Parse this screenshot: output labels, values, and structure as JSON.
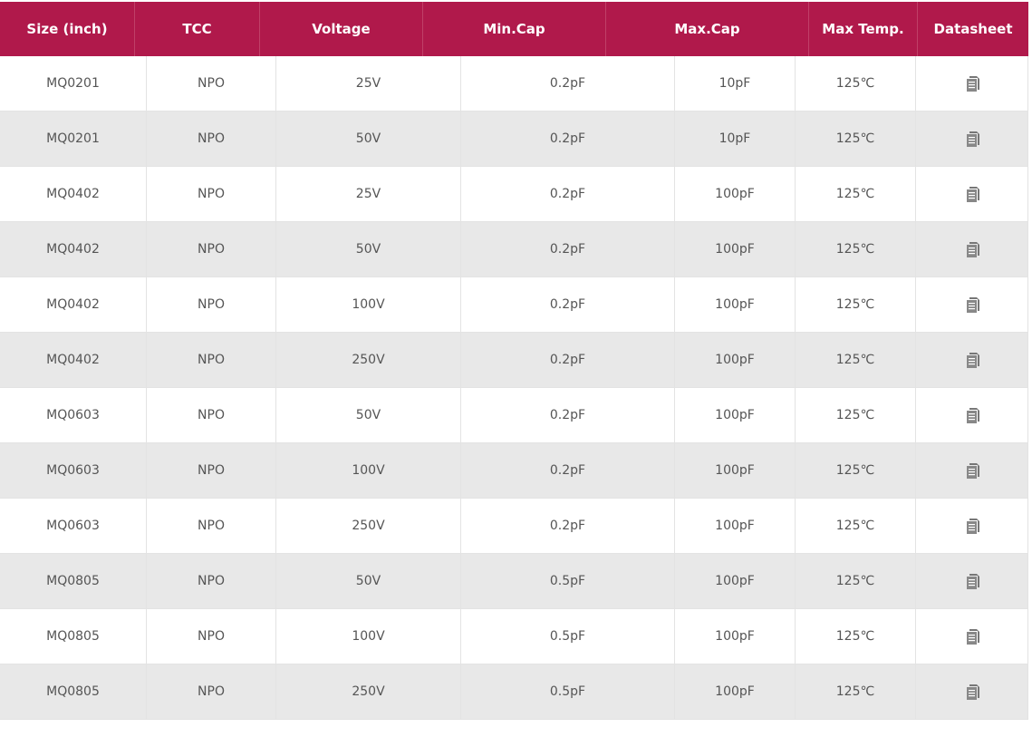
{
  "headers": [
    "Size (inch)",
    "TCC",
    "Voltage",
    "Min.Cap",
    "Max.Cap",
    "Max Temp.",
    "Datasheet"
  ],
  "colors": {
    "header_bg": "#b0194b",
    "alt_row": "#e8e8e8"
  },
  "datasheet_icon": "document-icon",
  "rows": [
    [
      "MQ0201",
      "NPO",
      "25V",
      "0.2pF",
      "10pF",
      "125℃"
    ],
    [
      "MQ0201",
      "NPO",
      "50V",
      "0.2pF",
      "10pF",
      "125℃"
    ],
    [
      "MQ0402",
      "NPO",
      "25V",
      "0.2pF",
      "100pF",
      "125℃"
    ],
    [
      "MQ0402",
      "NPO",
      "50V",
      "0.2pF",
      "100pF",
      "125℃"
    ],
    [
      "MQ0402",
      "NPO",
      "100V",
      "0.2pF",
      "100pF",
      "125℃"
    ],
    [
      "MQ0402",
      "NPO",
      "250V",
      "0.2pF",
      "100pF",
      "125℃"
    ],
    [
      "MQ0603",
      "NPO",
      "50V",
      "0.2pF",
      "100pF",
      "125℃"
    ],
    [
      "MQ0603",
      "NPO",
      "100V",
      "0.2pF",
      "100pF",
      "125℃"
    ],
    [
      "MQ0603",
      "NPO",
      "250V",
      "0.2pF",
      "100pF",
      "125℃"
    ],
    [
      "MQ0805",
      "NPO",
      "50V",
      "0.5pF",
      "100pF",
      "125℃"
    ],
    [
      "MQ0805",
      "NPO",
      "100V",
      "0.5pF",
      "100pF",
      "125℃"
    ],
    [
      "MQ0805",
      "NPO",
      "250V",
      "0.5pF",
      "100pF",
      "125℃"
    ]
  ]
}
